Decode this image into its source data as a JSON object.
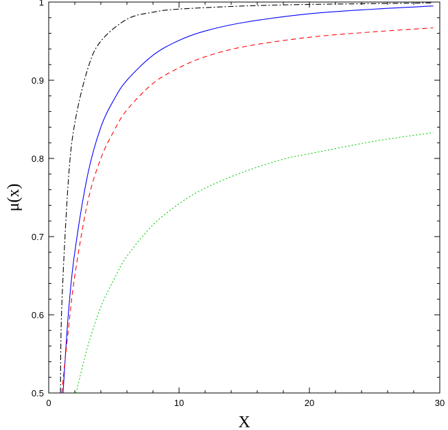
{
  "chart_data": {
    "type": "line",
    "xlabel": "X",
    "ylabel": "μ(x)",
    "xlim": [
      0,
      30
    ],
    "ylim": [
      0.5,
      1.0
    ],
    "x_ticks": [
      "0",
      "10",
      "20",
      "30"
    ],
    "y_ticks": [
      "0.5",
      "0.6",
      "0.7",
      "0.8",
      "0.9",
      "1"
    ],
    "grid": false,
    "series": [
      {
        "color": "#000000",
        "dash": "dash-dot",
        "x": [
          0.9,
          1.0,
          1.5,
          2.0,
          3.0,
          4.0,
          6.0,
          8.0,
          10.0,
          15.0,
          20.0,
          25.0,
          29.5
        ],
        "values": [
          0.5,
          0.61,
          0.77,
          0.845,
          0.915,
          0.95,
          0.978,
          0.987,
          0.991,
          0.995,
          0.997,
          0.998,
          0.999
        ]
      },
      {
        "color": "#0000ff",
        "dash": "solid",
        "x": [
          1.1,
          1.5,
          2.0,
          3.0,
          4.0,
          5.0,
          6.0,
          8.0,
          10.0,
          12.0,
          15.0,
          20.0,
          25.0,
          29.5
        ],
        "values": [
          0.5,
          0.6,
          0.68,
          0.78,
          0.84,
          0.875,
          0.9,
          0.932,
          0.951,
          0.963,
          0.974,
          0.985,
          0.991,
          0.995
        ]
      },
      {
        "color": "#ff0000",
        "dash": "dashed",
        "x": [
          1.0,
          1.5,
          2.0,
          3.0,
          4.0,
          5.0,
          6.0,
          8.0,
          10.0,
          12.0,
          15.0,
          20.0,
          25.0,
          29.5
        ],
        "values": [
          0.5,
          0.58,
          0.65,
          0.745,
          0.8,
          0.835,
          0.862,
          0.896,
          0.916,
          0.93,
          0.943,
          0.955,
          0.962,
          0.967
        ]
      },
      {
        "color": "#00cc00",
        "dash": "dotted",
        "x": [
          2.1,
          3.0,
          4.0,
          5.0,
          6.0,
          8.0,
          10.0,
          12.0,
          15.0,
          18.0,
          20.0,
          25.0,
          29.5
        ],
        "values": [
          0.5,
          0.56,
          0.61,
          0.645,
          0.675,
          0.715,
          0.742,
          0.762,
          0.783,
          0.799,
          0.806,
          0.822,
          0.833
        ]
      }
    ]
  }
}
